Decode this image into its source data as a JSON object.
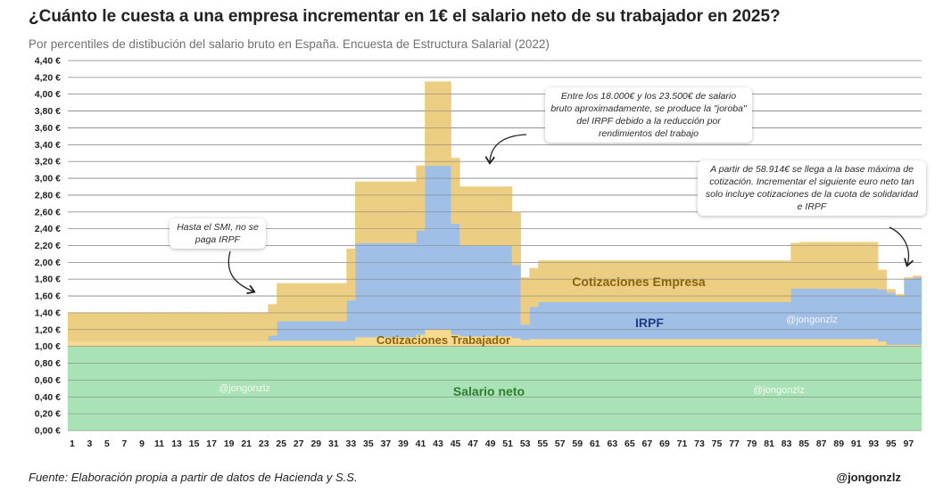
{
  "header": {
    "title": "¿Cuánto le cuesta a una empresa incrementar en 1€ el salario neto de su trabajador en 2025?",
    "subtitle": "Por percentiles de distibución del salario bruto en España. Encuesta de Estructura Salarial (2022)"
  },
  "footer": {
    "source": "Fuente: Elaboración propia a partir de datos de Hacienda y S.S.",
    "handle": "@jongonzlz"
  },
  "chart_data": {
    "type": "area",
    "stacked": true,
    "step": true,
    "x": [
      1,
      2,
      3,
      4,
      5,
      6,
      7,
      8,
      9,
      10,
      11,
      12,
      13,
      14,
      15,
      16,
      17,
      18,
      19,
      20,
      21,
      22,
      23,
      24,
      25,
      26,
      27,
      28,
      29,
      30,
      31,
      32,
      33,
      34,
      35,
      36,
      37,
      38,
      39,
      40,
      41,
      42,
      43,
      44,
      45,
      46,
      47,
      48,
      49,
      50,
      51,
      52,
      53,
      54,
      55,
      56,
      57,
      58,
      59,
      60,
      61,
      62,
      63,
      64,
      65,
      66,
      67,
      68,
      69,
      70,
      71,
      72,
      73,
      74,
      75,
      76,
      77,
      78,
      79,
      80,
      81,
      82,
      83,
      84,
      85,
      86,
      87,
      88,
      89,
      90,
      91,
      92,
      93,
      94,
      95,
      96,
      97,
      98
    ],
    "xticks": [
      1,
      3,
      5,
      7,
      9,
      11,
      13,
      15,
      17,
      19,
      21,
      23,
      25,
      27,
      29,
      31,
      33,
      35,
      37,
      39,
      41,
      43,
      45,
      47,
      49,
      51,
      53,
      55,
      57,
      59,
      61,
      63,
      65,
      67,
      69,
      71,
      73,
      75,
      77,
      79,
      81,
      83,
      85,
      87,
      89,
      91,
      93,
      95,
      97
    ],
    "ylim": [
      0,
      4.4
    ],
    "yticks": [
      "0,00 €",
      "0,20 €",
      "0,40 €",
      "0,60 €",
      "0,80 €",
      "1,00 €",
      "1,20 €",
      "1,40 €",
      "1,60 €",
      "1,80 €",
      "2,00 €",
      "2,20 €",
      "2,40 €",
      "2,60 €",
      "2,80 €",
      "3,00 €",
      "3,20 €",
      "3,40 €",
      "3,60 €",
      "3,80 €",
      "4,00 €",
      "4,20 €",
      "4,40 €"
    ],
    "grid": true,
    "series": [
      {
        "name": "Salario neto",
        "color": "#a9e2b5",
        "label_color": "#2e7d32",
        "values": [
          1.0,
          1.0,
          1.0,
          1.0,
          1.0,
          1.0,
          1.0,
          1.0,
          1.0,
          1.0,
          1.0,
          1.0,
          1.0,
          1.0,
          1.0,
          1.0,
          1.0,
          1.0,
          1.0,
          1.0,
          1.0,
          1.0,
          1.0,
          1.0,
          1.0,
          1.0,
          1.0,
          1.0,
          1.0,
          1.0,
          1.0,
          1.0,
          1.0,
          1.0,
          1.0,
          1.0,
          1.0,
          1.0,
          1.0,
          1.0,
          1.0,
          1.0,
          1.0,
          1.0,
          1.0,
          1.0,
          1.0,
          1.0,
          1.0,
          1.0,
          1.0,
          1.0,
          1.0,
          1.0,
          1.0,
          1.0,
          1.0,
          1.0,
          1.0,
          1.0,
          1.0,
          1.0,
          1.0,
          1.0,
          1.0,
          1.0,
          1.0,
          1.0,
          1.0,
          1.0,
          1.0,
          1.0,
          1.0,
          1.0,
          1.0,
          1.0,
          1.0,
          1.0,
          1.0,
          1.0,
          1.0,
          1.0,
          1.0,
          1.0,
          1.0,
          1.0,
          1.0,
          1.0,
          1.0,
          1.0,
          1.0,
          1.0,
          1.0,
          1.0,
          1.0,
          1.0,
          1.0,
          1.0
        ]
      },
      {
        "name": "Cotizaciones Trabajador",
        "color": "#f8da8f",
        "label_color": "#8a6410",
        "values": [
          0.07,
          0.07,
          0.07,
          0.07,
          0.07,
          0.07,
          0.07,
          0.07,
          0.07,
          0.07,
          0.07,
          0.07,
          0.07,
          0.07,
          0.07,
          0.07,
          0.07,
          0.07,
          0.07,
          0.07,
          0.07,
          0.07,
          0.07,
          0.07,
          0.07,
          0.07,
          0.07,
          0.07,
          0.07,
          0.07,
          0.07,
          0.07,
          0.07,
          0.11,
          0.11,
          0.11,
          0.11,
          0.11,
          0.11,
          0.11,
          0.14,
          0.2,
          0.2,
          0.2,
          0.14,
          0.12,
          0.12,
          0.12,
          0.12,
          0.12,
          0.12,
          0.1,
          0.08,
          0.09,
          0.09,
          0.09,
          0.09,
          0.09,
          0.09,
          0.09,
          0.09,
          0.09,
          0.09,
          0.09,
          0.09,
          0.09,
          0.09,
          0.09,
          0.09,
          0.09,
          0.09,
          0.09,
          0.09,
          0.09,
          0.09,
          0.09,
          0.09,
          0.09,
          0.09,
          0.09,
          0.09,
          0.09,
          0.09,
          0.09,
          0.09,
          0.09,
          0.09,
          0.09,
          0.09,
          0.09,
          0.09,
          0.09,
          0.09,
          0.06,
          0.02,
          0.02,
          0.02,
          0.02
        ]
      },
      {
        "name": "IRPF",
        "color": "#9fbfe6",
        "label_color": "#1f3d82",
        "values": [
          0.0,
          0.0,
          0.0,
          0.0,
          0.0,
          0.0,
          0.0,
          0.0,
          0.0,
          0.0,
          0.0,
          0.0,
          0.0,
          0.0,
          0.0,
          0.0,
          0.0,
          0.0,
          0.0,
          0.0,
          0.0,
          0.0,
          0.0,
          0.06,
          0.23,
          0.23,
          0.23,
          0.23,
          0.23,
          0.23,
          0.23,
          0.23,
          0.48,
          1.12,
          1.12,
          1.12,
          1.12,
          1.12,
          1.12,
          1.12,
          1.24,
          1.95,
          1.95,
          1.95,
          1.32,
          1.08,
          1.08,
          1.08,
          1.08,
          1.08,
          1.08,
          0.87,
          0.18,
          0.38,
          0.44,
          0.44,
          0.44,
          0.44,
          0.44,
          0.44,
          0.44,
          0.44,
          0.44,
          0.44,
          0.44,
          0.44,
          0.44,
          0.44,
          0.44,
          0.44,
          0.44,
          0.44,
          0.44,
          0.44,
          0.44,
          0.44,
          0.44,
          0.44,
          0.44,
          0.44,
          0.44,
          0.44,
          0.44,
          0.6,
          0.6,
          0.6,
          0.6,
          0.6,
          0.6,
          0.6,
          0.6,
          0.6,
          0.6,
          0.62,
          0.62,
          0.58,
          0.78,
          0.8
        ]
      },
      {
        "name": "Cotizaciones Empresa",
        "color": "#ecce82",
        "label_color": "#8a6410",
        "values": [
          0.33,
          0.33,
          0.33,
          0.33,
          0.33,
          0.33,
          0.33,
          0.33,
          0.33,
          0.33,
          0.33,
          0.33,
          0.33,
          0.33,
          0.33,
          0.33,
          0.33,
          0.33,
          0.33,
          0.33,
          0.33,
          0.33,
          0.33,
          0.37,
          0.45,
          0.45,
          0.45,
          0.45,
          0.45,
          0.45,
          0.45,
          0.45,
          0.61,
          0.73,
          0.73,
          0.73,
          0.73,
          0.73,
          0.73,
          0.73,
          0.77,
          1.0,
          1.0,
          1.0,
          0.78,
          0.7,
          0.7,
          0.7,
          0.7,
          0.7,
          0.7,
          0.63,
          0.56,
          0.46,
          0.49,
          0.49,
          0.49,
          0.49,
          0.49,
          0.49,
          0.49,
          0.49,
          0.49,
          0.49,
          0.49,
          0.49,
          0.49,
          0.49,
          0.49,
          0.49,
          0.49,
          0.49,
          0.49,
          0.49,
          0.49,
          0.49,
          0.49,
          0.49,
          0.49,
          0.49,
          0.49,
          0.49,
          0.49,
          0.54,
          0.55,
          0.55,
          0.55,
          0.55,
          0.55,
          0.55,
          0.55,
          0.55,
          0.55,
          0.23,
          0.04,
          0.02,
          0.02,
          0.02
        ]
      }
    ],
    "annotations": [
      {
        "text": "Hasta el SMI, no se paga IRPF"
      },
      {
        "text": "Entre los 18.000€ y los 23.500€ de salario bruto aproximadamente, se produce la \"joroba\" del IRPF debido a la reducción por rendimientos del trabajo"
      },
      {
        "text": "A partir de 58.914€ se llega a la base máxima de cotización. Incrementar el siguiente euro neto tan solo incluye cotizaciones de la cuota de solidaridad e IRPF"
      }
    ],
    "watermarks": [
      "@jongonzlz",
      "@jongonzlz",
      "@jongonzlz"
    ]
  },
  "colors": {
    "grid": "#7a7a7a",
    "axis_text": "#222222",
    "arrow": "#222222"
  }
}
